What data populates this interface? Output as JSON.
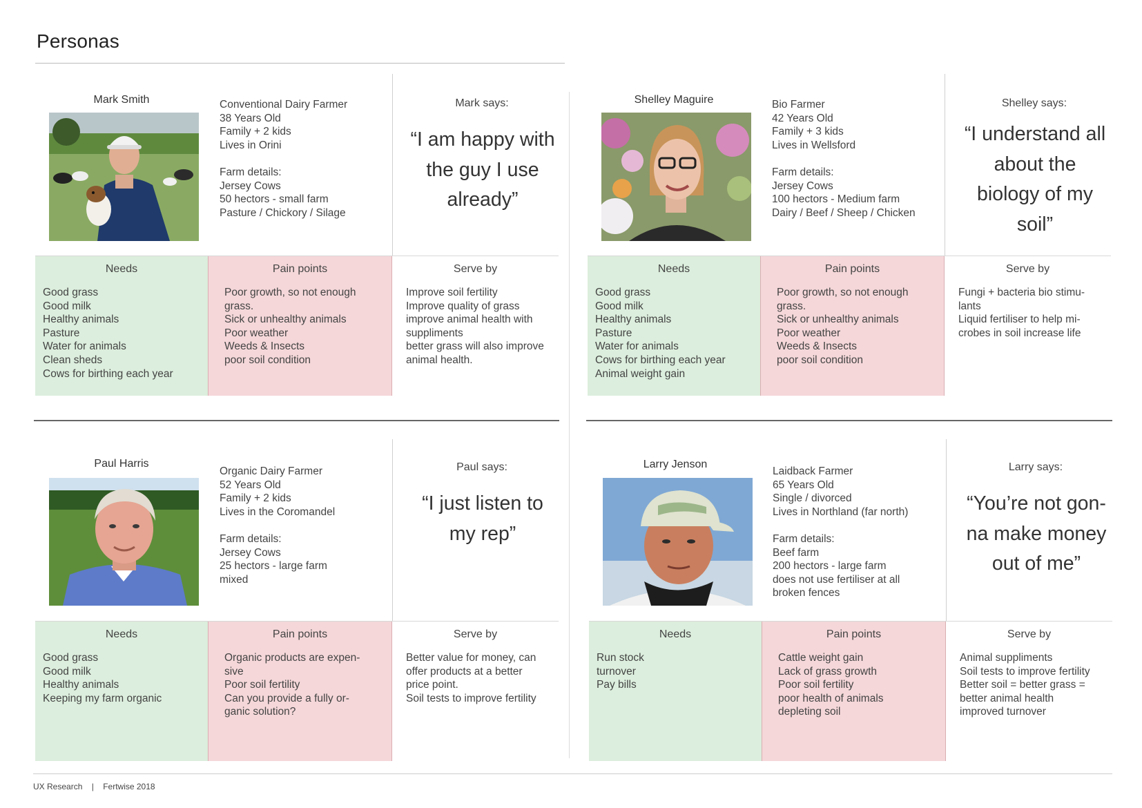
{
  "page": {
    "title": "Personas",
    "footer": {
      "left": "UX Research",
      "separator": "|",
      "right": "Fertwise 2018"
    }
  },
  "personas": [
    {
      "name": "Mark Smith",
      "details": [
        "Conventional Dairy Farmer",
        "38 Years Old",
        "Family + 2 kids",
        "Lives in Orini",
        "",
        "Farm details:",
        "Jersey Cows",
        "50 hectors - small farm",
        "Pasture / Chickory / Silage"
      ],
      "says_label": "Mark says:",
      "quote": [
        "“I am happy with",
        "the guy I use",
        "already”"
      ],
      "needs_label": "Needs",
      "needs": [
        "Good grass",
        "Good milk",
        "Healthy animals",
        "Pasture",
        "Water for animals",
        "Clean sheds",
        "Cows for birthing each year"
      ],
      "pain_label": "Pain points",
      "pain": [
        "Poor growth, so not enough",
        "grass.",
        "Sick or unhealthy animals",
        "Poor weather",
        "Weeds & Insects",
        "poor soil condition"
      ],
      "serve_label": "Serve by",
      "serve": [
        "Improve soil fertility",
        "Improve quality of grass",
        "improve animal health with",
        "suppliments",
        "better grass will also improve",
        "animal health."
      ]
    },
    {
      "name": "Shelley Maguire",
      "details": [
        "Bio Farmer",
        "42 Years Old",
        "Family + 3 kids",
        "Lives in Wellsford",
        "",
        "Farm details:",
        "Jersey Cows",
        "100 hectors - Medium farm",
        "Dairy / Beef / Sheep / Chicken"
      ],
      "says_label": "Shelley says:",
      "quote": [
        "“I understand all",
        "about the",
        "biology of my",
        "soil”"
      ],
      "needs_label": "Needs",
      "needs": [
        "Good grass",
        "Good milk",
        "Healthy animals",
        "Pasture",
        "Water for animals",
        "Cows for birthing each year",
        "Animal weight gain"
      ],
      "pain_label": "Pain points",
      "pain": [
        "Poor growth, so not enough",
        "grass.",
        "Sick or unhealthy animals",
        "Poor weather",
        "Weeds & Insects",
        "poor soil condition"
      ],
      "serve_label": "Serve by",
      "serve": [
        "Fungi + bacteria bio stimu-",
        "lants",
        "Liquid fertiliser to help mi-",
        "crobes in soil increase life"
      ]
    },
    {
      "name": "Paul Harris",
      "details": [
        "Organic Dairy Farmer",
        "52 Years Old",
        "Family + 2 kids",
        "Lives in the Coromandel",
        "",
        "Farm details:",
        "Jersey Cows",
        "25 hectors - large farm",
        "mixed"
      ],
      "says_label": "Paul says:",
      "quote": [
        "“I just listen to",
        "my rep”"
      ],
      "needs_label": "Needs",
      "needs": [
        "Good grass",
        "Good milk",
        "Healthy animals",
        "Keeping my farm organic"
      ],
      "pain_label": "Pain points",
      "pain": [
        "Organic products are expen-",
        "sive",
        "Poor soil fertility",
        "Can you provide a fully or-",
        "ganic solution?"
      ],
      "serve_label": "Serve by",
      "serve": [
        "Better value for money, can",
        "offer products at a better",
        "price point.",
        "Soil tests to improve fertility"
      ]
    },
    {
      "name": "Larry Jenson",
      "details": [
        "Laidback Farmer",
        "65 Years Old",
        "Single / divorced",
        "Lives in Northland (far north)",
        "",
        "Farm details:",
        "Beef farm",
        "200 hectors - large farm",
        "does not use fertiliser at all",
        "broken fences"
      ],
      "says_label": "Larry says:",
      "quote": [
        "“You’re not gon-",
        "na make money",
        "out of me”"
      ],
      "needs_label": "Needs",
      "needs": [
        "Run stock",
        "turnover",
        "Pay bills"
      ],
      "pain_label": "Pain points",
      "pain": [
        "Cattle weight gain",
        "Lack of grass growth",
        "Poor soil fertility",
        "poor health of animals",
        "depleting soil"
      ],
      "serve_label": "Serve by",
      "serve": [
        "Animal suppliments",
        "Soil tests to improve fertility",
        "Better soil = better grass =",
        "better animal health",
        "improved turnover"
      ]
    }
  ]
}
